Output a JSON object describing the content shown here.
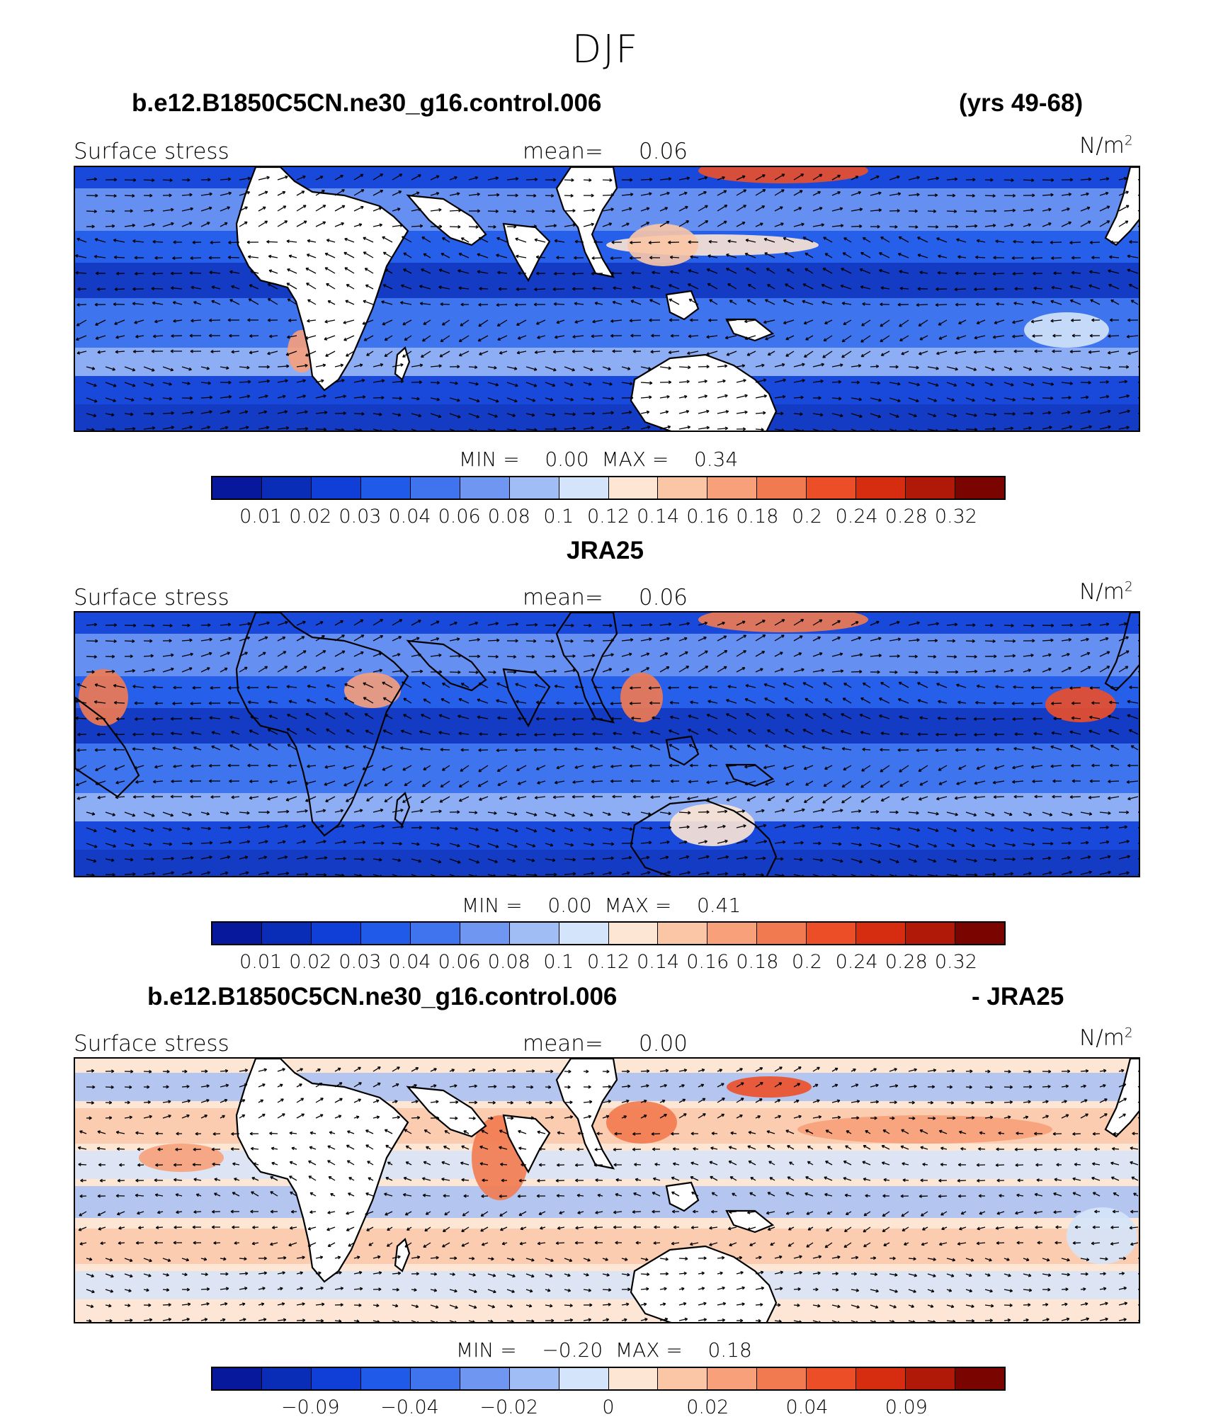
{
  "title": "DJF",
  "panels": [
    {
      "case_title": "b.e12.B1850C5CN.ne30_g16.control.006",
      "right_title": "(yrs 49-68)",
      "left_label": "Surface stress",
      "mean_label": "mean=",
      "mean_value": "0.06",
      "units": "N/m",
      "units_sup": "2",
      "min_label": "MIN =",
      "min_value": "0.00",
      "max_label": "MAX =",
      "max_value": "0.34",
      "colorbar": {
        "colors": [
          "#08189c",
          "#0a2db8",
          "#0f3fd6",
          "#1f5ae8",
          "#3f74ee",
          "#6f97f2",
          "#a1bdf6",
          "#d4e4fa",
          "#fde6d4",
          "#fbc6a6",
          "#f7a07a",
          "#f27a50",
          "#ec4f28",
          "#d62c10",
          "#b01808",
          "#7a0400"
        ],
        "ticks": [
          "0.01",
          "0.02",
          "0.03",
          "0.04",
          "0.06",
          "0.08",
          "0.1",
          "0.12",
          "0.14",
          "0.16",
          "0.18",
          "0.2",
          "0.24",
          "0.28",
          "0.32"
        ]
      }
    },
    {
      "case_title": "JRA25",
      "right_title": "",
      "left_label": "Surface stress",
      "mean_label": "mean=",
      "mean_value": "0.06",
      "units": "N/m",
      "units_sup": "2",
      "min_label": "MIN =",
      "min_value": "0.00",
      "max_label": "MAX =",
      "max_value": "0.41",
      "colorbar": {
        "colors": [
          "#08189c",
          "#0a2db8",
          "#0f3fd6",
          "#1f5ae8",
          "#3f74ee",
          "#6f97f2",
          "#a1bdf6",
          "#d4e4fa",
          "#fde6d4",
          "#fbc6a6",
          "#f7a07a",
          "#f27a50",
          "#ec4f28",
          "#d62c10",
          "#b01808",
          "#7a0400"
        ],
        "ticks": [
          "0.01",
          "0.02",
          "0.03",
          "0.04",
          "0.06",
          "0.08",
          "0.1",
          "0.12",
          "0.14",
          "0.16",
          "0.18",
          "0.2",
          "0.24",
          "0.28",
          "0.32"
        ]
      }
    },
    {
      "case_title": "b.e12.B1850C5CN.ne30_g16.control.006",
      "right_title": "- JRA25",
      "left_label": "Surface stress",
      "mean_label": "mean=",
      "mean_value": "0.00",
      "units": "N/m",
      "units_sup": "2",
      "min_label": "MIN =",
      "min_value": "−0.20",
      "max_label": "MAX =",
      "max_value": "0.18",
      "colorbar": {
        "colors": [
          "#08189c",
          "#0a2db8",
          "#0f3fd6",
          "#1f5ae8",
          "#3f74ee",
          "#6f97f2",
          "#a1bdf6",
          "#d4e4fa",
          "#fde6d4",
          "#fbc6a6",
          "#f7a07a",
          "#f27a50",
          "#ec4f28",
          "#d62c10",
          "#b01808",
          "#7a0400"
        ],
        "ticks": [
          "",
          "−0.09",
          "",
          "−0.04",
          "",
          "−0.02",
          "",
          "0",
          "",
          "0.02",
          "",
          "0.04",
          "",
          "0.09",
          ""
        ]
      }
    }
  ]
}
